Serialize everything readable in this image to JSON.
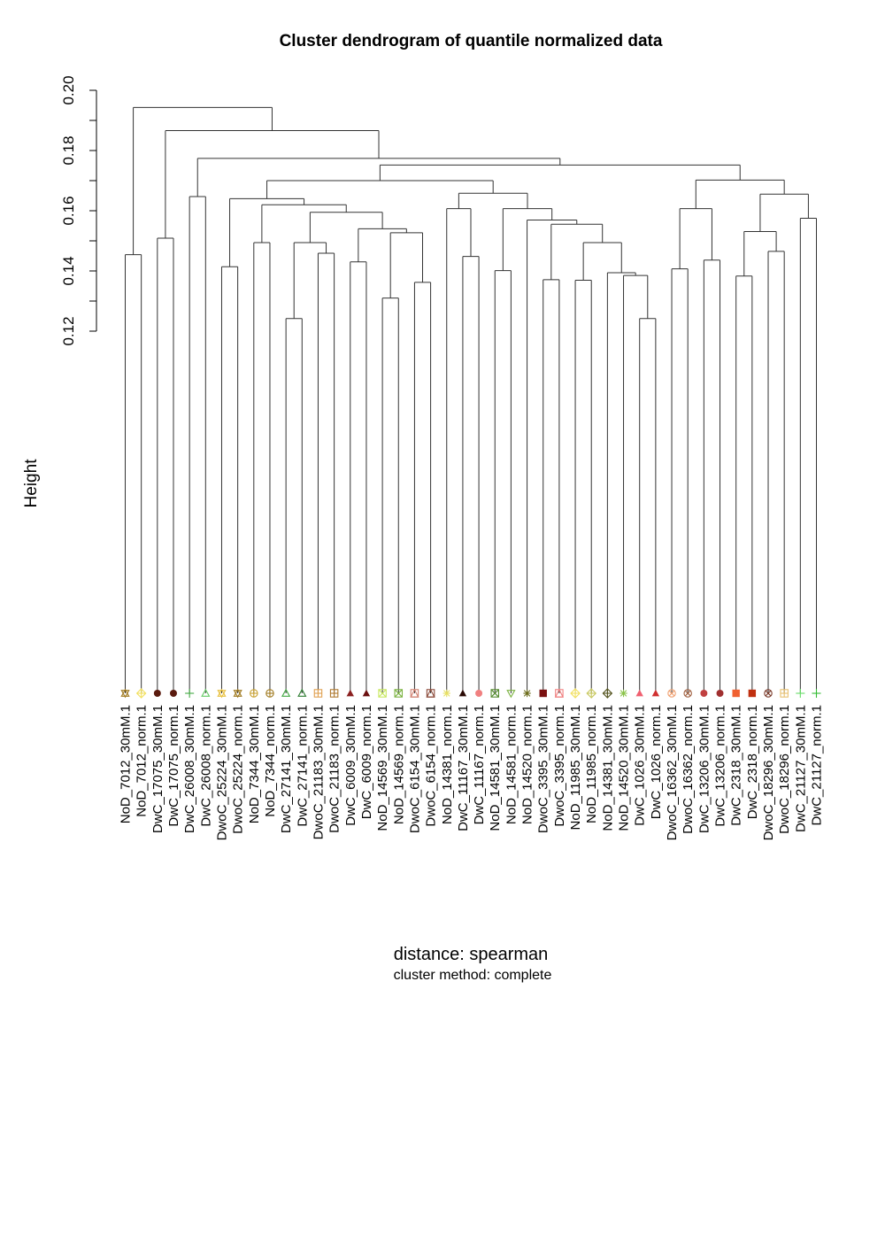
{
  "chart_data": {
    "type": "dendrogram",
    "title": "Cluster dendrogram of quantile normalized data",
    "ylabel": "Height",
    "sub_lines": [
      "distance: spearman",
      "cluster method: complete"
    ],
    "ylim": [
      0.12,
      0.2
    ],
    "yticks": [
      {
        "value": 0.12,
        "label": "0.12"
      },
      {
        "value": 0.14,
        "label": "0.14"
      },
      {
        "value": 0.16,
        "label": "0.16"
      },
      {
        "value": 0.18,
        "label": "0.18"
      },
      {
        "value": 0.2,
        "label": "0.20"
      }
    ],
    "leaf_bottom": 0.0,
    "leaves": [
      {
        "label": "NoD_7012_30mM.1",
        "symbol": "star6",
        "color": "#a07a20"
      },
      {
        "label": "NoD_7012_norm.1",
        "symbol": "diamondplus",
        "color": "#f2e060"
      },
      {
        "label": "DwC_17075_30mM.1",
        "symbol": "circle",
        "color": "#5a1a0e"
      },
      {
        "label": "DwC_17075_norm.1",
        "symbol": "circle",
        "color": "#5a1a0e"
      },
      {
        "label": "DwC_26008_30mM.1",
        "symbol": "plus",
        "color": "#44aa44"
      },
      {
        "label": "DwC_26008_norm.1",
        "symbol": "triangle-open",
        "color": "#66cc66"
      },
      {
        "label": "DwoC_25224_30mM.1",
        "symbol": "star6",
        "color": "#e8c040"
      },
      {
        "label": "DwoC_25224_norm.1",
        "symbol": "star6",
        "color": "#a07a20"
      },
      {
        "label": "NoD_7344_30mM.1",
        "symbol": "circleplus",
        "color": "#c8a030"
      },
      {
        "label": "NoD_7344_norm.1",
        "symbol": "circleplus",
        "color": "#a07a20"
      },
      {
        "label": "DwC_27141_30mM.1",
        "symbol": "triangle-open",
        "color": "#44aa44"
      },
      {
        "label": "DwC_27141_norm.1",
        "symbol": "triangle-open",
        "color": "#2e7d32"
      },
      {
        "label": "DwoC_21183_30mM.1",
        "symbol": "squareplus",
        "color": "#e0a050"
      },
      {
        "label": "DwoC_21183_norm.1",
        "symbol": "squareplus",
        "color": "#b07a30"
      },
      {
        "label": "DwC_6009_30mM.1",
        "symbol": "triangle",
        "color": "#8b2020"
      },
      {
        "label": "DwC_6009_norm.1",
        "symbol": "triangle",
        "color": "#6b0f0f"
      },
      {
        "label": "NoD_14569_30mM.1",
        "symbol": "squarex",
        "color": "#c8e860"
      },
      {
        "label": "NoD_14569_norm.1",
        "symbol": "squarex",
        "color": "#7cb342"
      },
      {
        "label": "DwoC_6154_30mM.1",
        "symbol": "squaretri",
        "color": "#d08070"
      },
      {
        "label": "DwoC_6154_norm.1",
        "symbol": "squaretri",
        "color": "#8b4a3a"
      },
      {
        "label": "NoD_14381_norm.1",
        "symbol": "asterisk",
        "color": "#e8e060"
      },
      {
        "label": "DwC_11167_30mM.1",
        "symbol": "triangle",
        "color": "#2a0a05"
      },
      {
        "label": "DwC_11167_norm.1",
        "symbol": "circle",
        "color": "#f08080"
      },
      {
        "label": "NoD_14581_30mM.1",
        "symbol": "squarex",
        "color": "#558b2f"
      },
      {
        "label": "NoD_14581_norm.1",
        "symbol": "triangle-down",
        "color": "#7cb342"
      },
      {
        "label": "NoD_14520_norm.1",
        "symbol": "asterisk",
        "color": "#6b6b1a"
      },
      {
        "label": "DwoC_3395_30mM.1",
        "symbol": "square",
        "color": "#7a1010"
      },
      {
        "label": "DwoC_3395_norm.1",
        "symbol": "squaretri",
        "color": "#f08080"
      },
      {
        "label": "NoD_11985_30mM.1",
        "symbol": "diamondplus",
        "color": "#f2e060"
      },
      {
        "label": "NoD_11985_norm.1",
        "symbol": "diamondplus",
        "color": "#c8c860"
      },
      {
        "label": "NoD_14381_30mM.1",
        "symbol": "diamondplus",
        "color": "#555520"
      },
      {
        "label": "NoD_14520_30mM.1",
        "symbol": "asterisk",
        "color": "#8bc34a"
      },
      {
        "label": "DwC_1026_30mM.1",
        "symbol": "triangle",
        "color": "#f06070"
      },
      {
        "label": "DwC_1026_norm.1",
        "symbol": "triangle",
        "color": "#d03030"
      },
      {
        "label": "DwoC_16362_30mM.1",
        "symbol": "circlex",
        "color": "#f0a070"
      },
      {
        "label": "DwoC_16362_norm.1",
        "symbol": "circlex",
        "color": "#a06040"
      },
      {
        "label": "DwC_13206_30mM.1",
        "symbol": "circle",
        "color": "#c04040"
      },
      {
        "label": "DwC_13206_norm.1",
        "symbol": "circle",
        "color": "#a03030"
      },
      {
        "label": "DwC_2318_30mM.1",
        "symbol": "square",
        "color": "#f06030"
      },
      {
        "label": "DwC_2318_norm.1",
        "symbol": "square",
        "color": "#c03010"
      },
      {
        "label": "DwoC_18296_30mM.1",
        "symbol": "circlex",
        "color": "#7a3a2a"
      },
      {
        "label": "DwoC_18296_norm.1",
        "symbol": "squareplus",
        "color": "#e8c070"
      },
      {
        "label": "DwC_21127_30mM.1",
        "symbol": "plus",
        "color": "#66dd66"
      },
      {
        "label": "DwC_21127_norm.1",
        "symbol": "plus",
        "color": "#33bb33"
      }
    ],
    "merges": [
      {
        "id": "A",
        "left": 0,
        "right": 1,
        "height": 0.1454
      },
      {
        "id": "B",
        "left": 2,
        "right": 3,
        "height": 0.1509
      },
      {
        "id": "C",
        "left": 4,
        "right": 5,
        "height": 0.1647
      },
      {
        "id": "D",
        "left": 6,
        "right": 7,
        "height": 0.1414
      },
      {
        "id": "E",
        "left": 8,
        "right": 9,
        "height": 0.1494
      },
      {
        "id": "F",
        "left": 10,
        "right": 11,
        "height": 0.1242
      },
      {
        "id": "G",
        "left": 12,
        "right": 13,
        "height": 0.1459
      },
      {
        "id": "H",
        "left": "F",
        "right": "G",
        "height": 0.1494
      },
      {
        "id": "I",
        "left": 14,
        "right": 15,
        "height": 0.143
      },
      {
        "id": "J",
        "left": 16,
        "right": 17,
        "height": 0.131
      },
      {
        "id": "K",
        "left": 18,
        "right": 19,
        "height": 0.1362
      },
      {
        "id": "L",
        "left": "J",
        "right": "K",
        "height": 0.1527
      },
      {
        "id": "M",
        "left": "I",
        "right": "L",
        "height": 0.154
      },
      {
        "id": "N",
        "left": "H",
        "right": "M",
        "height": 0.1595
      },
      {
        "id": "O",
        "left": "E",
        "right": "N",
        "height": 0.162
      },
      {
        "id": "P",
        "left": "D",
        "right": "O",
        "height": 0.164
      },
      {
        "id": "Q",
        "left": 21,
        "right": 22,
        "height": 0.1448
      },
      {
        "id": "R",
        "left": 20,
        "right": "Q",
        "height": 0.1607
      },
      {
        "id": "S",
        "left": 23,
        "right": 24,
        "height": 0.1401
      },
      {
        "id": "T",
        "left": 26,
        "right": 27,
        "height": 0.1371
      },
      {
        "id": "U",
        "left": 28,
        "right": 29,
        "height": 0.1369
      },
      {
        "id": "V",
        "left": 32,
        "right": 33,
        "height": 0.1242
      },
      {
        "id": "W",
        "left": 31,
        "right": "V",
        "height": 0.1385
      },
      {
        "id": "X",
        "left": 30,
        "right": "W",
        "height": 0.1394
      },
      {
        "id": "Y",
        "left": "U",
        "right": "X",
        "height": 0.1494
      },
      {
        "id": "Z",
        "left": "T",
        "right": "Y",
        "height": 0.1555
      },
      {
        "id": "AA",
        "left": 25,
        "right": "Z",
        "height": 0.1569
      },
      {
        "id": "AB",
        "left": "S",
        "right": "AA",
        "height": 0.1607
      },
      {
        "id": "AC",
        "left": "R",
        "right": "AB",
        "height": 0.1658
      },
      {
        "id": "AD",
        "left": "P",
        "right": "AC",
        "height": 0.17
      },
      {
        "id": "AE",
        "left": 34,
        "right": 35,
        "height": 0.1407
      },
      {
        "id": "AF",
        "left": 36,
        "right": 37,
        "height": 0.1436
      },
      {
        "id": "AG",
        "left": "AE",
        "right": "AF",
        "height": 0.1607
      },
      {
        "id": "AH",
        "left": 38,
        "right": 39,
        "height": 0.1383
      },
      {
        "id": "AI",
        "left": 40,
        "right": 41,
        "height": 0.1465
      },
      {
        "id": "AJ",
        "left": "AH",
        "right": "AI",
        "height": 0.1531
      },
      {
        "id": "AK",
        "left": 42,
        "right": 43,
        "height": 0.1575
      },
      {
        "id": "AL",
        "left": "AJ",
        "right": "AK",
        "height": 0.1655
      },
      {
        "id": "AM",
        "left": "AG",
        "right": "AL",
        "height": 0.1702
      },
      {
        "id": "AN",
        "left": "AD",
        "right": "AM",
        "height": 0.1752
      },
      {
        "id": "AO",
        "left": "C",
        "right": "AN",
        "height": 0.1774
      },
      {
        "id": "AP",
        "left": "B",
        "right": "AO",
        "height": 0.1866
      },
      {
        "id": "AQ",
        "left": "A",
        "right": "AP",
        "height": 0.1943
      }
    ]
  }
}
